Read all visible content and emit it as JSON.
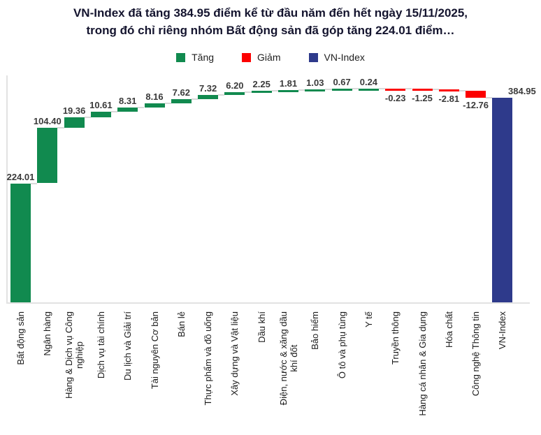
{
  "title": {
    "line1": "VN-Index đã tăng 384.95 điểm kể từ đầu năm đến hết ngày 15/11/2025,",
    "line2": "trong đó chỉ riêng nhóm Bất động sản đã góp tăng 224.01 điểm…"
  },
  "legend": [
    {
      "label": "Tăng",
      "color": "#118a4f"
    },
    {
      "label": "Giảm",
      "color": "#fc0000"
    },
    {
      "label": "VN-Index",
      "color": "#2e3a8b"
    }
  ],
  "colors": {
    "increase": "#118a4f",
    "decrease": "#fc0000",
    "total": "#2e3a8b",
    "connector": "#d9d9d9",
    "axis": "#e2e2e2"
  },
  "chart_data": {
    "type": "bar",
    "subtype": "waterfall",
    "title": "VN-Index đã tăng 384.95 điểm kể từ đầu năm đến hết ngày 15/11/2025, trong đó chỉ riêng nhóm Bất động sản đã góp tăng 224.01 điểm…",
    "xlabel": "",
    "ylabel": "",
    "ylim": [
      0,
      425
    ],
    "grid": false,
    "legend_position": "top",
    "categories": [
      "Bất động sản",
      "Ngân hàng",
      "Hàng & Dịch vụ Công\nnghiệp",
      "Dịch vụ tài chính",
      "Du lịch và Giải trí",
      "Tài nguyên Cơ bản",
      "Bán lẻ",
      "Thực phẩm và đồ uống",
      "Xây dựng và Vật liệu",
      "Dầu khí",
      "Điện, nước & xăng dầu\nkhí đốt",
      "Bảo hiểm",
      "Ô tô và phụ tùng",
      "Y tế",
      "Truyền thông",
      "Hàng cá nhân & Gia dụng",
      "Hóa chất",
      "Công nghệ Thông tin",
      "VN-Index"
    ],
    "values": [
      224.01,
      104.4,
      19.36,
      10.61,
      8.31,
      8.16,
      7.62,
      7.32,
      6.2,
      2.25,
      1.81,
      1.03,
      0.67,
      0.24,
      -0.23,
      -1.25,
      -2.81,
      -12.76,
      384.95
    ],
    "types": [
      "increase",
      "increase",
      "increase",
      "increase",
      "increase",
      "increase",
      "increase",
      "increase",
      "increase",
      "increase",
      "increase",
      "increase",
      "increase",
      "increase",
      "decrease",
      "decrease",
      "decrease",
      "decrease",
      "total"
    ],
    "value_labels": [
      "224.01",
      "104.40",
      "19.36",
      "10.61",
      "8.31",
      "8.16",
      "7.62",
      "7.32",
      "6.20",
      "2.25",
      "1.81",
      "1.03",
      "0.67",
      "0.24",
      "-0.23",
      "-1.25",
      "-2.81",
      "-12.76",
      "384.95"
    ]
  }
}
